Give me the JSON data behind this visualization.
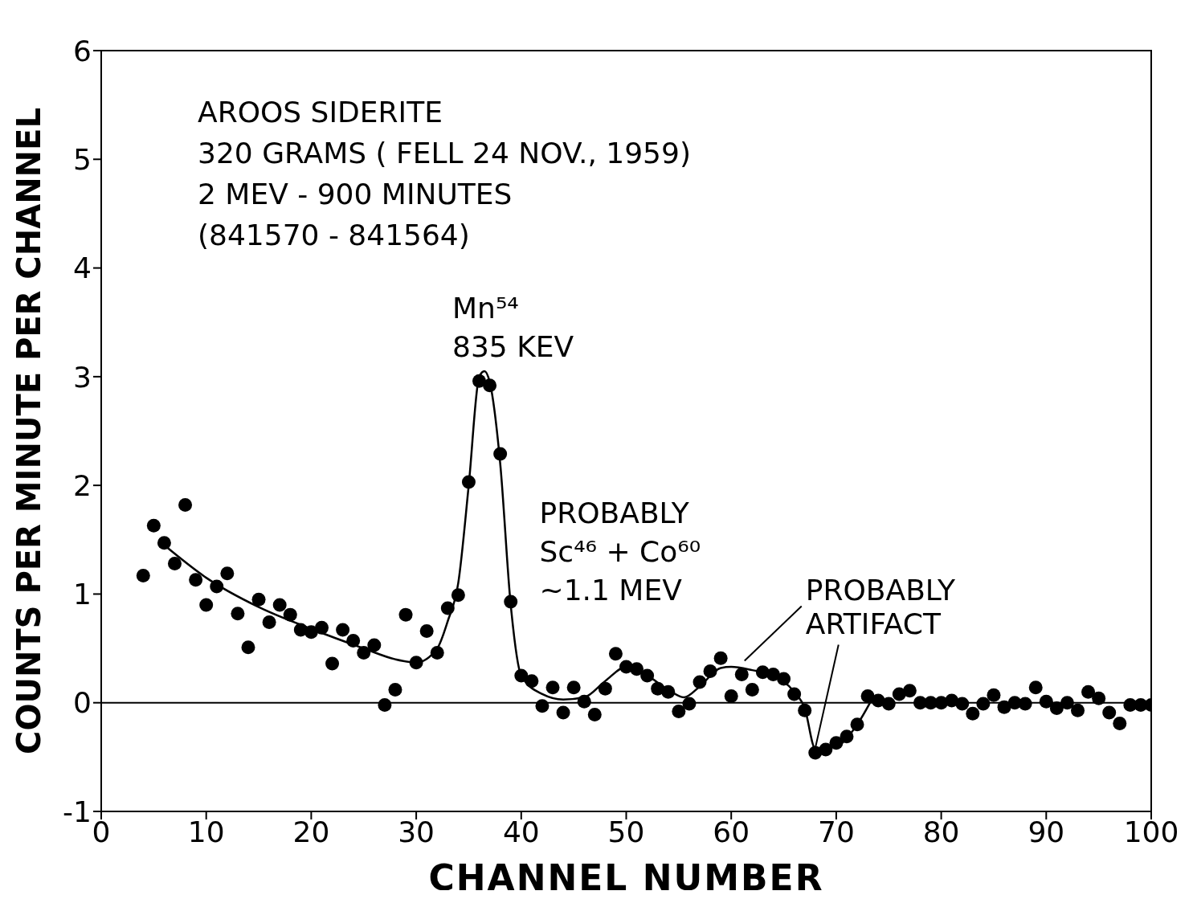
{
  "chart_data": {
    "type": "scatter",
    "xlabel": "CHANNEL NUMBER",
    "ylabel": "COUNTS PER MINUTE PER CHANNEL",
    "xlim": [
      0,
      100
    ],
    "xticks": [
      0,
      10,
      20,
      30,
      40,
      50,
      60,
      70,
      80,
      90,
      100
    ],
    "ylim": [
      -1,
      6
    ],
    "yticks": [
      -1,
      0,
      1,
      2,
      3,
      4,
      5,
      6
    ],
    "grid": false,
    "legend": false,
    "marker": "circle",
    "ref_lines": [
      {
        "axis": "y",
        "value": 0,
        "color": "#000000"
      }
    ],
    "annotations": [
      "AROOS SIDERITE",
      "320 GRAMS ( FELL 24 NOV., 1959)",
      "2 MEV - 900 MINUTES",
      "(841570 - 841564)",
      {
        "text": "Mn⁵⁴\n835 KEV",
        "x": 36.5,
        "y": 3.05
      },
      {
        "text": "PROBABLY\nSc⁴⁶ + Co⁶⁰\n~1.1 MEV",
        "x": 50,
        "y": 0.33
      },
      {
        "text": "PROBABLY\nARTIFACT",
        "x": 68,
        "y": -0.42
      }
    ],
    "series": [
      {
        "color": "#000000",
        "x": [
          4,
          5,
          6,
          7,
          8,
          9,
          10,
          11,
          12,
          13,
          14,
          15,
          16,
          17,
          18,
          19,
          20,
          21,
          22,
          23,
          24,
          25,
          26,
          27,
          28,
          29,
          30,
          31,
          32,
          33,
          34,
          35,
          36,
          37,
          38,
          39,
          40,
          41,
          42,
          43,
          44,
          45,
          46,
          47,
          48,
          49,
          50,
          51,
          52,
          53,
          54,
          55,
          56,
          57,
          58,
          59,
          60,
          61,
          62,
          63,
          64,
          65,
          66,
          67,
          68,
          69,
          70,
          71,
          72,
          73,
          74,
          75,
          76,
          77,
          78,
          79,
          80,
          81,
          82,
          83,
          84,
          85,
          86,
          87,
          88,
          89,
          90,
          91,
          92,
          93,
          94,
          95,
          96,
          97,
          98,
          99,
          100
        ],
        "values": [
          1.17,
          1.63,
          1.47,
          1.28,
          1.82,
          1.13,
          0.9,
          1.07,
          1.19,
          0.82,
          0.51,
          0.95,
          0.74,
          0.9,
          0.81,
          0.67,
          0.65,
          0.69,
          0.36,
          0.67,
          0.57,
          0.46,
          0.53,
          -0.02,
          0.12,
          0.81,
          0.37,
          0.66,
          0.46,
          0.87,
          0.99,
          2.03,
          2.96,
          2.92,
          2.29,
          0.93,
          0.25,
          0.2,
          -0.03,
          0.14,
          -0.09,
          0.14,
          0.01,
          -0.11,
          0.13,
          0.45,
          0.33,
          0.31,
          0.25,
          0.13,
          0.1,
          -0.08,
          -0.01,
          0.19,
          0.29,
          0.41,
          0.06,
          0.26,
          0.12,
          0.28,
          0.26,
          0.22,
          0.08,
          -0.07,
          -0.46,
          -0.43,
          -0.37,
          -0.31,
          -0.2,
          0.06,
          0.02,
          -0.01,
          0.08,
          0.11,
          0,
          0,
          0,
          0.02,
          -0.01,
          -0.1,
          -0.01,
          0.07,
          -0.04,
          0,
          -0.01,
          0.14,
          0.01,
          -0.05,
          0,
          -0.07,
          0.1,
          0.04,
          -0.09,
          -0.19,
          -0.02,
          -0.02,
          -0.02
        ]
      },
      {
        "type": "line",
        "color": "#000000",
        "marker": "none",
        "x": [
          6,
          10,
          15,
          20,
          25,
          28,
          30,
          32,
          33,
          34,
          35,
          36,
          36.5,
          37,
          38,
          39,
          40,
          42,
          44,
          46,
          48,
          50,
          52,
          54,
          55.5,
          57,
          59,
          60,
          62,
          64,
          66,
          67,
          68,
          70,
          72,
          73.5
        ],
        "values": [
          1.45,
          1.15,
          0.88,
          0.68,
          0.5,
          0.4,
          0.37,
          0.5,
          0.75,
          1.1,
          2.0,
          3.0,
          3.05,
          2.95,
          2.2,
          0.9,
          0.25,
          0.08,
          0.03,
          0.05,
          0.2,
          0.33,
          0.25,
          0.12,
          0.05,
          0.15,
          0.32,
          0.33,
          0.3,
          0.25,
          0.1,
          -0.05,
          -0.42,
          -0.4,
          -0.2,
          0.05
        ]
      }
    ]
  }
}
